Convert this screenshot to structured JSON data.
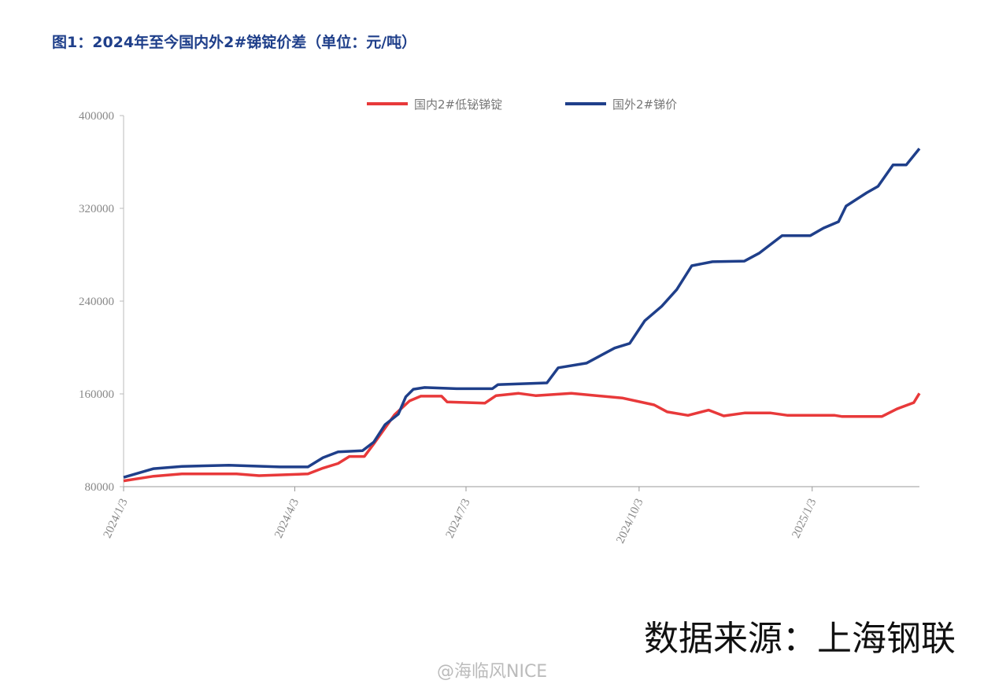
{
  "chart_data": {
    "type": "line",
    "title": "图1：2024年至今国内外2#锑锭价差（单位：元/吨）",
    "source": "数据来源：上海钢联",
    "watermark": "@海临风NICE",
    "xlim": [
      "2024/1/3",
      "2025/3/1"
    ],
    "xticks": [
      "2024/1/3",
      "2024/4/3",
      "2024/7/3",
      "2024/10/3",
      "2025/1/3"
    ],
    "ylim": [
      80000,
      400000
    ],
    "yticks": [
      80000,
      160000,
      240000,
      320000,
      400000
    ],
    "legend": "top",
    "series": [
      {
        "name": "国内2#低铋锑锭",
        "color": "#e8393a",
        "x": [
          "2024/1/3",
          "2024/1/19",
          "2024/2/3",
          "2024/3/3",
          "2024/3/15",
          "2024/4/10",
          "2024/4/18",
          "2024/4/26",
          "2024/5/2",
          "2024/5/10",
          "2024/5/15",
          "2024/5/26",
          "2024/6/3",
          "2024/6/9",
          "2024/6/20",
          "2024/6/23",
          "2024/7/13",
          "2024/7/19",
          "2024/7/31",
          "2024/8/9",
          "2024/8/28",
          "2024/9/24",
          "2024/10/11",
          "2024/10/18",
          "2024/10/29",
          "2024/11/9",
          "2024/11/17",
          "2024/11/28",
          "2024/12/12",
          "2024/12/21",
          "2025/1/15",
          "2025/1/19",
          "2025/2/9",
          "2025/2/17",
          "2025/2/26",
          "2025/3/1"
        ],
        "values": [
          85000,
          89000,
          91000,
          91000,
          89500,
          91000,
          96000,
          100000,
          106000,
          106000,
          117000,
          142000,
          154000,
          158000,
          158000,
          153000,
          152000,
          158500,
          160500,
          158500,
          160500,
          156500,
          150500,
          144500,
          141500,
          146000,
          141000,
          143500,
          143500,
          141500,
          141500,
          140500,
          140500,
          147000,
          152500,
          160500
        ]
      },
      {
        "name": "国外2#锑价",
        "color": "#1f3f8a",
        "x": [
          "2024/1/3",
          "2024/1/19",
          "2024/2/3",
          "2024/2/28",
          "2024/3/26",
          "2024/4/10",
          "2024/4/18",
          "2024/4/26",
          "2024/5/9",
          "2024/5/15",
          "2024/5/21",
          "2024/5/28",
          "2024/6/1",
          "2024/6/5",
          "2024/6/11",
          "2024/6/28",
          "2024/7/17",
          "2024/7/20",
          "2024/8/15",
          "2024/8/21",
          "2024/9/5",
          "2024/9/20",
          "2024/9/28",
          "2024/10/6",
          "2024/10/15",
          "2024/10/23",
          "2024/10/31",
          "2024/11/11",
          "2024/11/28",
          "2024/12/6",
          "2024/12/18",
          "2025/1/2",
          "2025/1/9",
          "2025/1/17",
          "2025/1/21",
          "2025/2/1",
          "2025/2/7",
          "2025/2/15",
          "2025/2/22",
          "2025/3/1"
        ],
        "values": [
          88000,
          95500,
          97500,
          98500,
          97000,
          97000,
          105000,
          110000,
          111000,
          118500,
          133500,
          142500,
          157500,
          164000,
          165500,
          164500,
          164500,
          168000,
          169500,
          182500,
          186500,
          199500,
          203500,
          223000,
          235500,
          250000,
          270500,
          274000,
          274500,
          281500,
          296500,
          296500,
          303000,
          308500,
          322000,
          333500,
          339000,
          357500,
          357500,
          371500
        ]
      }
    ]
  }
}
